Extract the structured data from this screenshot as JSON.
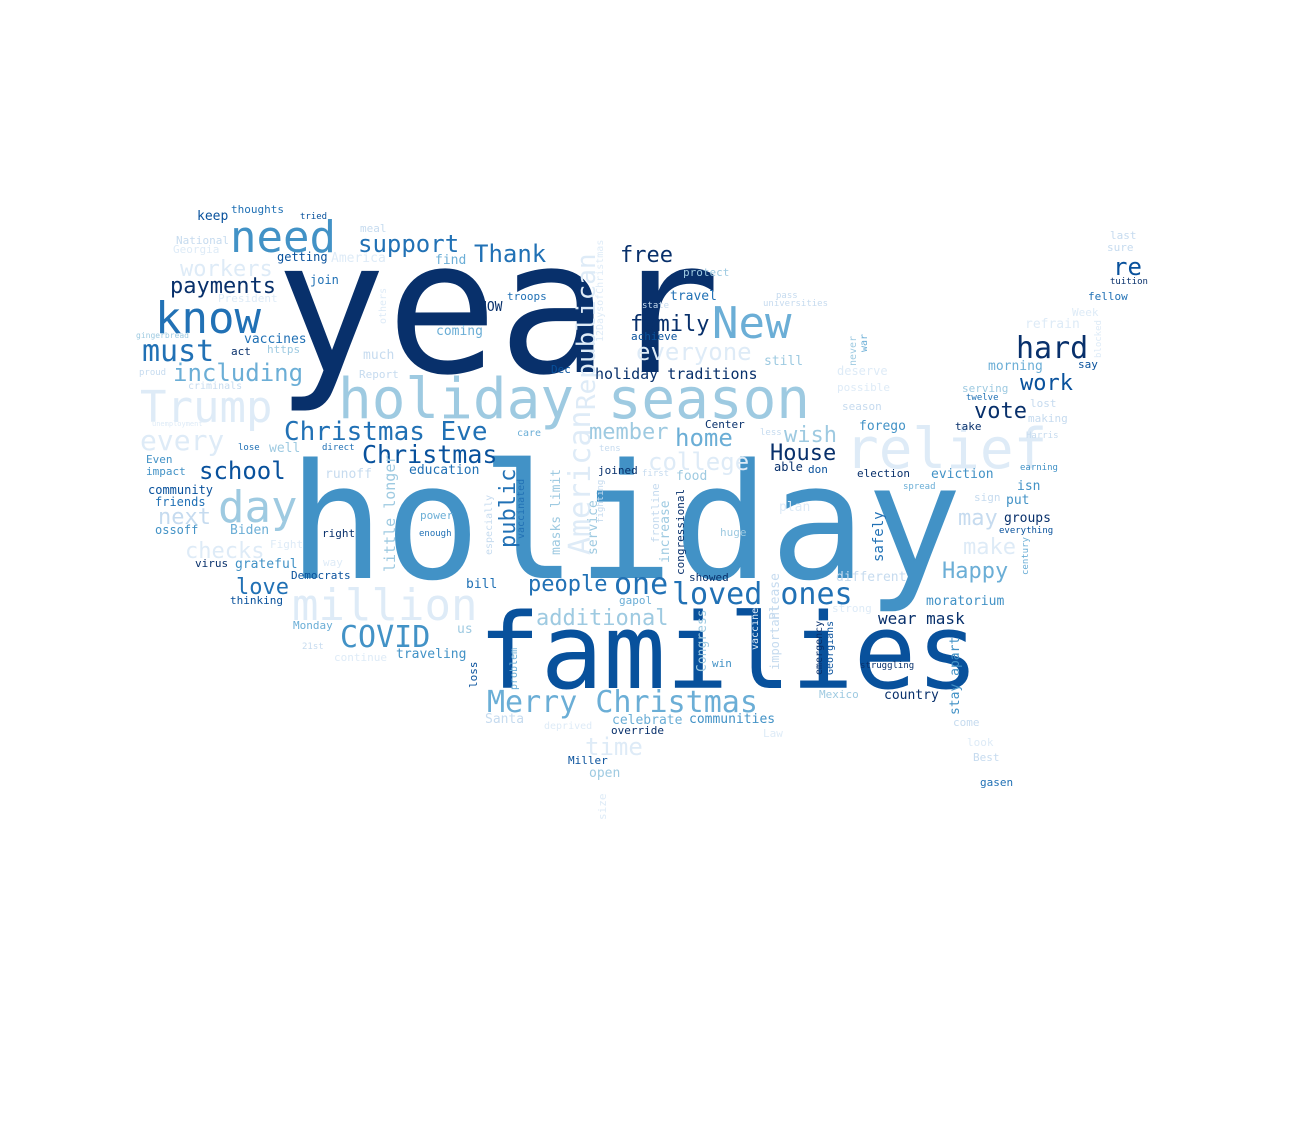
{
  "palette": {
    "darkest": "#08306b",
    "dark": "#08519c",
    "mid_dark": "#2171b5",
    "mid": "#4292c6",
    "mid_light": "#6baed6",
    "light": "#9ecae1",
    "lighter": "#c6dbef",
    "lightest": "#deebf7"
  },
  "words": [
    {
      "text": "year",
      "color": "#08306b"
    },
    {
      "text": "holiday",
      "color": "#4292c6"
    },
    {
      "text": "families",
      "color": "#08519c"
    },
    {
      "text": "holiday season",
      "color": "#9ecae1"
    },
    {
      "text": "relief",
      "color": "#deebf7"
    },
    {
      "text": "need",
      "color": "#4292c6"
    },
    {
      "text": "know",
      "color": "#2171b5"
    },
    {
      "text": "New",
      "color": "#6baed6"
    },
    {
      "text": "Trump",
      "color": "#deebf7"
    },
    {
      "text": "day",
      "color": "#9ecae1"
    },
    {
      "text": "million",
      "color": "#deebf7"
    },
    {
      "text": "loved ones",
      "color": "#2171b5"
    },
    {
      "text": "Merry Christmas",
      "color": "#6baed6"
    },
    {
      "text": "Christmas Eve",
      "color": "#2171b5"
    },
    {
      "text": "hard",
      "color": "#08306b"
    },
    {
      "text": "American",
      "color": "#deebf7"
    },
    {
      "text": "Republican",
      "color": "#deebf7"
    },
    {
      "text": "must",
      "color": "#2171b5"
    },
    {
      "text": "COVID",
      "color": "#4292c6"
    },
    {
      "text": "one",
      "color": "#2171b5"
    },
    {
      "text": "Christmas",
      "color": "#08519c"
    },
    {
      "text": "support",
      "color": "#2171b5"
    },
    {
      "text": "Thank",
      "color": "#2171b5"
    },
    {
      "text": "school",
      "color": "#08519c"
    },
    {
      "text": "including",
      "color": "#6baed6"
    },
    {
      "text": "every",
      "color": "#deebf7"
    },
    {
      "text": "everyone",
      "color": "#deebf7"
    },
    {
      "text": "college",
      "color": "#deebf7"
    },
    {
      "text": "home",
      "color": "#6baed6"
    },
    {
      "text": "family",
      "color": "#08306b"
    },
    {
      "text": "payments",
      "color": "#08306b"
    },
    {
      "text": "free",
      "color": "#08306b"
    },
    {
      "text": "workers",
      "color": "#deebf7"
    },
    {
      "text": "additional",
      "color": "#9ecae1"
    },
    {
      "text": "people",
      "color": "#2171b5"
    },
    {
      "text": "love",
      "color": "#2171b5"
    },
    {
      "text": "time",
      "color": "#deebf7"
    },
    {
      "text": "member",
      "color": "#9ecae1"
    },
    {
      "text": "wish",
      "color": "#9ecae1"
    },
    {
      "text": "may",
      "color": "#c6dbef"
    },
    {
      "text": "make",
      "color": "#deebf7"
    },
    {
      "text": "Happy",
      "color": "#6baed6"
    },
    {
      "text": "House",
      "color": "#08306b"
    },
    {
      "text": "public",
      "color": "#2171b5"
    },
    {
      "text": "work",
      "color": "#08519c"
    },
    {
      "text": "vote",
      "color": "#08306b"
    },
    {
      "text": "re",
      "color": "#08519c"
    },
    {
      "text": "next",
      "color": "#c6dbef"
    },
    {
      "text": "checks",
      "color": "#deebf7"
    },
    {
      "text": "holiday traditions",
      "color": "#08306b"
    },
    {
      "text": "wear mask",
      "color": "#08306b"
    },
    {
      "text": "little longer",
      "color": "#9ecae1"
    },
    {
      "text": "masks limit",
      "color": "#9ecae1"
    },
    {
      "text": "stay apart",
      "color": "#4292c6"
    },
    {
      "text": "service",
      "color": "#9ecae1"
    },
    {
      "text": "increase",
      "color": "#9ecae1"
    },
    {
      "text": "safely",
      "color": "#2171b5"
    },
    {
      "text": "Please",
      "color": "#c6dbef"
    },
    {
      "text": "important",
      "color": "#c6dbef"
    },
    {
      "text": "Congress",
      "color": "#9ecae1"
    },
    {
      "text": "congressional",
      "color": "#08306b"
    },
    {
      "text": "frontline",
      "color": "#c6dbef"
    },
    {
      "text": "vaccinated",
      "color": "#2171b5"
    },
    {
      "text": "especially",
      "color": "#c6dbef"
    },
    {
      "text": "12DaysofChristmas",
      "color": "#deebf7"
    },
    {
      "text": "thoughts",
      "color": "#2171b5"
    },
    {
      "text": "keep",
      "color": "#08519c"
    },
    {
      "text": "tried",
      "color": "#08519c"
    },
    {
      "text": "meal",
      "color": "#c6dbef"
    },
    {
      "text": "National",
      "color": "#c6dbef"
    },
    {
      "text": "Georgia",
      "color": "#deebf7"
    },
    {
      "text": "getting",
      "color": "#08519c"
    },
    {
      "text": "America",
      "color": "#deebf7"
    },
    {
      "text": "find",
      "color": "#6baed6"
    },
    {
      "text": "join",
      "color": "#2171b5"
    },
    {
      "text": "President",
      "color": "#deebf7"
    },
    {
      "text": "troops",
      "color": "#2171b5"
    },
    {
      "text": "NOW",
      "color": "#08306b"
    },
    {
      "text": "coming",
      "color": "#6baed6"
    },
    {
      "text": "vaccines",
      "color": "#2171b5"
    },
    {
      "text": "https",
      "color": "#9ecae1"
    },
    {
      "text": "act",
      "color": "#08306b"
    },
    {
      "text": "much",
      "color": "#c6dbef"
    },
    {
      "text": "Report",
      "color": "#c6dbef"
    },
    {
      "text": "proud",
      "color": "#c6dbef"
    },
    {
      "text": "criminals",
      "color": "#c6dbef"
    },
    {
      "text": "gingerbread",
      "color": "#9ecae1"
    },
    {
      "text": "others",
      "color": "#deebf7"
    },
    {
      "text": "Dec",
      "color": "#08519c"
    },
    {
      "text": "protect",
      "color": "#9ecae1"
    },
    {
      "text": "state",
      "color": "#c6dbef"
    },
    {
      "text": "travel",
      "color": "#2171b5"
    },
    {
      "text": "pass",
      "color": "#c6dbef"
    },
    {
      "text": "universities",
      "color": "#c6dbef"
    },
    {
      "text": "achieve",
      "color": "#08519c"
    },
    {
      "text": "still",
      "color": "#9ecae1"
    },
    {
      "text": "last",
      "color": "#c6dbef"
    },
    {
      "text": "sure",
      "color": "#c6dbef"
    },
    {
      "text": "tuition",
      "color": "#08306b"
    },
    {
      "text": "fellow",
      "color": "#2171b5"
    },
    {
      "text": "refrain",
      "color": "#deebf7"
    },
    {
      "text": "Week",
      "color": "#deebf7"
    },
    {
      "text": "never",
      "color": "#9ecae1"
    },
    {
      "text": "war",
      "color": "#6baed6"
    },
    {
      "text": "blocked",
      "color": "#deebf7"
    },
    {
      "text": "say",
      "color": "#08519c"
    },
    {
      "text": "morning",
      "color": "#6baed6"
    },
    {
      "text": "deserve",
      "color": "#deebf7"
    },
    {
      "text": "possible",
      "color": "#deebf7"
    },
    {
      "text": "serving",
      "color": "#9ecae1"
    },
    {
      "text": "twelve",
      "color": "#2171b5"
    },
    {
      "text": "lost",
      "color": "#c6dbef"
    },
    {
      "text": "making",
      "color": "#c6dbef"
    },
    {
      "text": "season",
      "color": "#c6dbef"
    },
    {
      "text": "forego",
      "color": "#4292c6"
    },
    {
      "text": "take",
      "color": "#08306b"
    },
    {
      "text": "Harris",
      "color": "#c6dbef"
    },
    {
      "text": "less",
      "color": "#c6dbef"
    },
    {
      "text": "care",
      "color": "#6baed6"
    },
    {
      "text": "Center",
      "color": "#08306b"
    },
    {
      "text": "able",
      "color": "#08306b"
    },
    {
      "text": "don",
      "color": "#08519c"
    },
    {
      "text": "election",
      "color": "#08306b"
    },
    {
      "text": "eviction",
      "color": "#4292c6"
    },
    {
      "text": "earning",
      "color": "#4292c6"
    },
    {
      "text": "spread",
      "color": "#6baed6"
    },
    {
      "text": "isn",
      "color": "#4292c6"
    },
    {
      "text": "sign",
      "color": "#c6dbef"
    },
    {
      "text": "put",
      "color": "#4292c6"
    },
    {
      "text": "groups",
      "color": "#08306b"
    },
    {
      "text": "everything",
      "color": "#08519c"
    },
    {
      "text": "century",
      "color": "#6baed6"
    },
    {
      "text": "moratorium",
      "color": "#4292c6"
    },
    {
      "text": "different",
      "color": "#c6dbef"
    },
    {
      "text": "strong",
      "color": "#deebf7"
    },
    {
      "text": "struggling",
      "color": "#08306b"
    },
    {
      "text": "country",
      "color": "#08306b"
    },
    {
      "text": "Mexico",
      "color": "#9ecae1"
    },
    {
      "text": "come",
      "color": "#c6dbef"
    },
    {
      "text": "look",
      "color": "#deebf7"
    },
    {
      "text": "Best",
      "color": "#c6dbef"
    },
    {
      "text": "gasen",
      "color": "#2171b5"
    },
    {
      "text": "emergency",
      "color": "#08306b"
    },
    {
      "text": "Georgians",
      "color": "#08519c"
    },
    {
      "text": "win",
      "color": "#4292c6"
    },
    {
      "text": "vaccine",
      "color": "#deebf7"
    },
    {
      "text": "communities",
      "color": "#4292c6"
    },
    {
      "text": "celebrate",
      "color": "#6baed6"
    },
    {
      "text": "override",
      "color": "#08306b"
    },
    {
      "text": "deprived",
      "color": "#deebf7"
    },
    {
      "text": "Law",
      "color": "#deebf7"
    },
    {
      "text": "Miller",
      "color": "#08519c"
    },
    {
      "text": "open",
      "color": "#9ecae1"
    },
    {
      "text": "size",
      "color": "#deebf7"
    },
    {
      "text": "Santa",
      "color": "#c6dbef"
    },
    {
      "text": "problem",
      "color": "#6baed6"
    },
    {
      "text": "loss",
      "color": "#08519c"
    },
    {
      "text": "traveling",
      "color": "#4292c6"
    },
    {
      "text": "continue",
      "color": "#deebf7"
    },
    {
      "text": "21st",
      "color": "#c6dbef"
    },
    {
      "text": "Monday",
      "color": "#6baed6"
    },
    {
      "text": "us",
      "color": "#9ecae1"
    },
    {
      "text": "gapol",
      "color": "#6baed6"
    },
    {
      "text": "bill",
      "color": "#2171b5"
    },
    {
      "text": "showed",
      "color": "#08306b"
    },
    {
      "text": "huge",
      "color": "#9ecae1"
    },
    {
      "text": "plan",
      "color": "#deebf7"
    },
    {
      "text": "food",
      "color": "#9ecae1"
    },
    {
      "text": "first",
      "color": "#c6dbef"
    },
    {
      "text": "joined",
      "color": "#08306b"
    },
    {
      "text": "tens",
      "color": "#c6dbef"
    },
    {
      "text": "fighting",
      "color": "#c6dbef"
    },
    {
      "text": "education",
      "color": "#2171b5"
    },
    {
      "text": "power",
      "color": "#6baed6"
    },
    {
      "text": "enough",
      "color": "#2171b5"
    },
    {
      "text": "right",
      "color": "#08306b"
    },
    {
      "text": "direct",
      "color": "#2171b5"
    },
    {
      "text": "lose",
      "color": "#2171b5"
    },
    {
      "text": "well",
      "color": "#9ecae1"
    },
    {
      "text": "runoff",
      "color": "#c6dbef"
    },
    {
      "text": "impact",
      "color": "#4292c6"
    },
    {
      "text": "Even",
      "color": "#4292c6"
    },
    {
      "text": "community",
      "color": "#08519c"
    },
    {
      "text": "friends",
      "color": "#2171b5"
    },
    {
      "text": "ossoff",
      "color": "#4292c6"
    },
    {
      "text": "Biden",
      "color": "#6baed6"
    },
    {
      "text": "Fight",
      "color": "#deebf7"
    },
    {
      "text": "grateful",
      "color": "#4292c6"
    },
    {
      "text": "virus",
      "color": "#08306b"
    },
    {
      "text": "Democrats",
      "color": "#08519c"
    },
    {
      "text": "thinking",
      "color": "#08519c"
    },
    {
      "text": "way",
      "color": "#deebf7"
    },
    {
      "text": "unemployment",
      "color": "#deebf7"
    }
  ]
}
